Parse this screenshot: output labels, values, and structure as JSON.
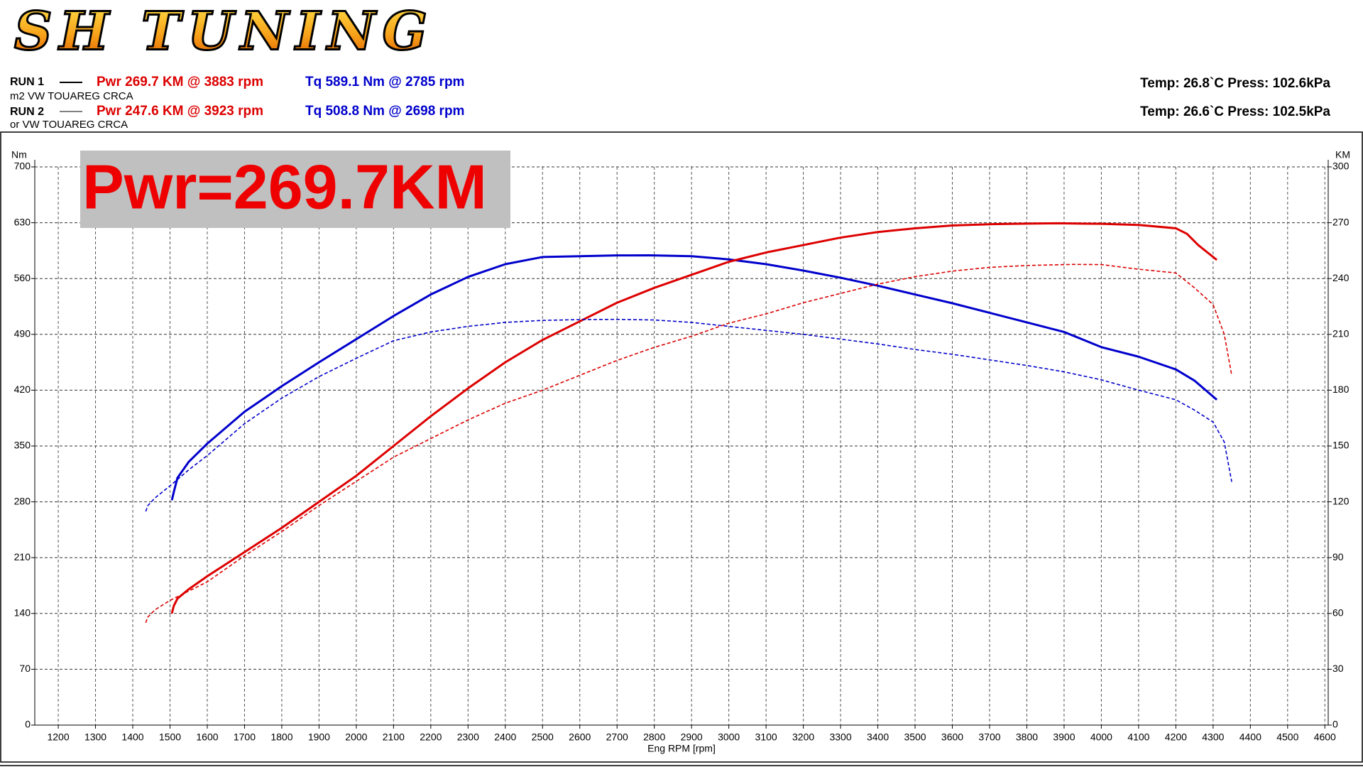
{
  "chart_data": {
    "type": "line",
    "logo": "SH TUNING",
    "runs": [
      {
        "label": "RUN 1",
        "power": "Pwr  269.7 KM @ 3883 rpm",
        "torque": "Tq 589.1 Nm @ 2785 rpm",
        "car": "m2 VW TOUAREG CRCA",
        "conditions": "Temp: 26.8`C    Press: 102.6kPa"
      },
      {
        "label": "RUN 2",
        "power": "Pwr  247.6 KM @ 3923 rpm",
        "torque": "Tq 508.8 Nm @ 2698 rpm",
        "car": "or VW TOUAREG CRCA",
        "conditions": "Temp: 26.6`C    Press: 102.5kPa"
      }
    ],
    "annotation": "Pwr=269.7KM",
    "ylabel": "Nm",
    "y2label": "KM",
    "xlabel": "Eng RPM [rpm]",
    "xlim": [
      1137,
      4609
    ],
    "xticks": [
      1200,
      1300,
      1400,
      1500,
      1600,
      1700,
      1800,
      1900,
      2000,
      2100,
      2200,
      2300,
      2400,
      2500,
      2600,
      2700,
      2800,
      2900,
      3000,
      3100,
      3200,
      3300,
      3400,
      3500,
      3600,
      3700,
      3800,
      3900,
      4000,
      4100,
      4200,
      4300,
      4400,
      4500,
      4600
    ],
    "ylim": [
      0,
      700
    ],
    "yticks": [
      0,
      70,
      140,
      210,
      280,
      350,
      420,
      490,
      560,
      630,
      700
    ],
    "y2lim": [
      0,
      300
    ],
    "y2ticks": [
      0,
      30,
      60,
      90,
      120,
      150,
      180,
      210,
      240,
      270,
      300
    ],
    "grid": true,
    "series": [
      {
        "color": "#0000cc",
        "dash": false,
        "x": [
          1505,
          1510,
          1520,
          1550,
          1600,
          1700,
          1800,
          1900,
          2000,
          2100,
          2200,
          2300,
          2400,
          2500,
          2600,
          2700,
          2785,
          2900,
          3000,
          3100,
          3200,
          3300,
          3400,
          3500,
          3600,
          3700,
          3800,
          3900,
          4000,
          4100,
          4200,
          4250,
          4280,
          4310
        ],
        "values": [
          282,
          292,
          310,
          330,
          353,
          393,
          425,
          455,
          484,
          513,
          540,
          562,
          578,
          587,
          588,
          589,
          589.1,
          588,
          584,
          578,
          570,
          561,
          551,
          540,
          529,
          517,
          505,
          493,
          474,
          462,
          446,
          432,
          420,
          408
        ]
      },
      {
        "color": "#dd0000",
        "dash": false,
        "axis": "y2",
        "x": [
          1505,
          1510,
          1520,
          1550,
          1600,
          1700,
          1800,
          1900,
          2000,
          2100,
          2200,
          2300,
          2400,
          2500,
          2600,
          2700,
          2800,
          2900,
          3000,
          3100,
          3200,
          3300,
          3400,
          3500,
          3600,
          3700,
          3800,
          3883,
          4000,
          4100,
          4200,
          4230,
          4260,
          4310
        ],
        "values": [
          60,
          64,
          68,
          73,
          80,
          93,
          106,
          120,
          134,
          150,
          166,
          181,
          195,
          207,
          217,
          227,
          235,
          242,
          249,
          254,
          258,
          262,
          265,
          267,
          268.5,
          269.2,
          269.5,
          269.7,
          269.4,
          268.8,
          267,
          264,
          258,
          250
        ]
      },
      {
        "color": "#0000cc",
        "dash": true,
        "x": [
          1435,
          1440,
          1460,
          1500,
          1550,
          1600,
          1700,
          1800,
          1900,
          2000,
          2100,
          2200,
          2300,
          2400,
          2500,
          2600,
          2698,
          2800,
          2900,
          3000,
          3100,
          3200,
          3300,
          3400,
          3500,
          3600,
          3700,
          3800,
          3900,
          4000,
          4100,
          4200,
          4250,
          4300,
          4330,
          4350
        ],
        "values": [
          268,
          275,
          285,
          300,
          320,
          338,
          378,
          410,
          437,
          460,
          482,
          493,
          500,
          505,
          507.5,
          508.5,
          508.8,
          508,
          505,
          500,
          495,
          490,
          484,
          478,
          471,
          465,
          458,
          451,
          443,
          433,
          420,
          408,
          395,
          380,
          355,
          305
        ]
      },
      {
        "color": "#dd0000",
        "dash": true,
        "axis": "y2",
        "x": [
          1435,
          1440,
          1460,
          1500,
          1550,
          1600,
          1700,
          1800,
          1900,
          2000,
          2100,
          2200,
          2300,
          2400,
          2500,
          2600,
          2700,
          2800,
          2900,
          3000,
          3100,
          3200,
          3300,
          3400,
          3500,
          3600,
          3700,
          3800,
          3923,
          4000,
          4100,
          4200,
          4250,
          4300,
          4330,
          4350
        ],
        "values": [
          55,
          58,
          62,
          67,
          72,
          77,
          91,
          104,
          118,
          131,
          144,
          154,
          164,
          173,
          180,
          188,
          196,
          203,
          209,
          216,
          221,
          227,
          232,
          237,
          241,
          244,
          246,
          247,
          247.6,
          247.5,
          245,
          243,
          235,
          226,
          210,
          188
        ]
      }
    ]
  }
}
